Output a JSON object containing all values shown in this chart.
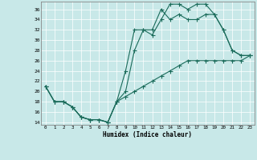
{
  "xlabel": "Humidex (Indice chaleur)",
  "bg_color": "#c8e8e8",
  "line_color": "#1a6b5a",
  "grid_color": "#b0d0d0",
  "xlim": [
    -0.5,
    23.5
  ],
  "ylim": [
    13.5,
    37.5
  ],
  "xticks": [
    0,
    1,
    2,
    3,
    4,
    5,
    6,
    7,
    8,
    9,
    10,
    11,
    12,
    13,
    14,
    15,
    16,
    17,
    18,
    19,
    20,
    21,
    22,
    23
  ],
  "yticks": [
    14,
    16,
    18,
    20,
    22,
    24,
    26,
    28,
    30,
    32,
    34,
    36
  ],
  "curve1_x": [
    0,
    1,
    2,
    3,
    4,
    5,
    6,
    7,
    8,
    9,
    10,
    11,
    12,
    13,
    14,
    15,
    16,
    17,
    18,
    19,
    20,
    21,
    22,
    23
  ],
  "curve1_y": [
    21,
    18,
    18,
    17,
    15,
    14.5,
    14.5,
    14,
    18,
    24,
    32,
    32,
    31,
    34,
    37,
    37,
    36,
    37,
    37,
    35,
    32,
    28,
    27,
    27
  ],
  "curve2_x": [
    0,
    1,
    2,
    3,
    4,
    5,
    6,
    7,
    8,
    9,
    10,
    11,
    12,
    13,
    14,
    15,
    16,
    17,
    18,
    19,
    20,
    21,
    22,
    23
  ],
  "curve2_y": [
    21,
    18,
    18,
    17,
    15,
    14.5,
    14.5,
    14,
    18,
    20,
    28,
    32,
    32,
    36,
    34,
    35,
    34,
    34,
    35,
    35,
    32,
    28,
    27,
    27
  ],
  "curve3_x": [
    0,
    1,
    2,
    3,
    4,
    5,
    6,
    7,
    8,
    9,
    10,
    11,
    12,
    13,
    14,
    15,
    16,
    17,
    18,
    19,
    20,
    21,
    22,
    23
  ],
  "curve3_y": [
    21,
    18,
    18,
    17,
    15,
    14.5,
    14.5,
    14,
    18,
    19,
    20,
    21,
    22,
    23,
    24,
    25,
    26,
    26,
    26,
    26,
    26,
    26,
    26,
    27
  ]
}
